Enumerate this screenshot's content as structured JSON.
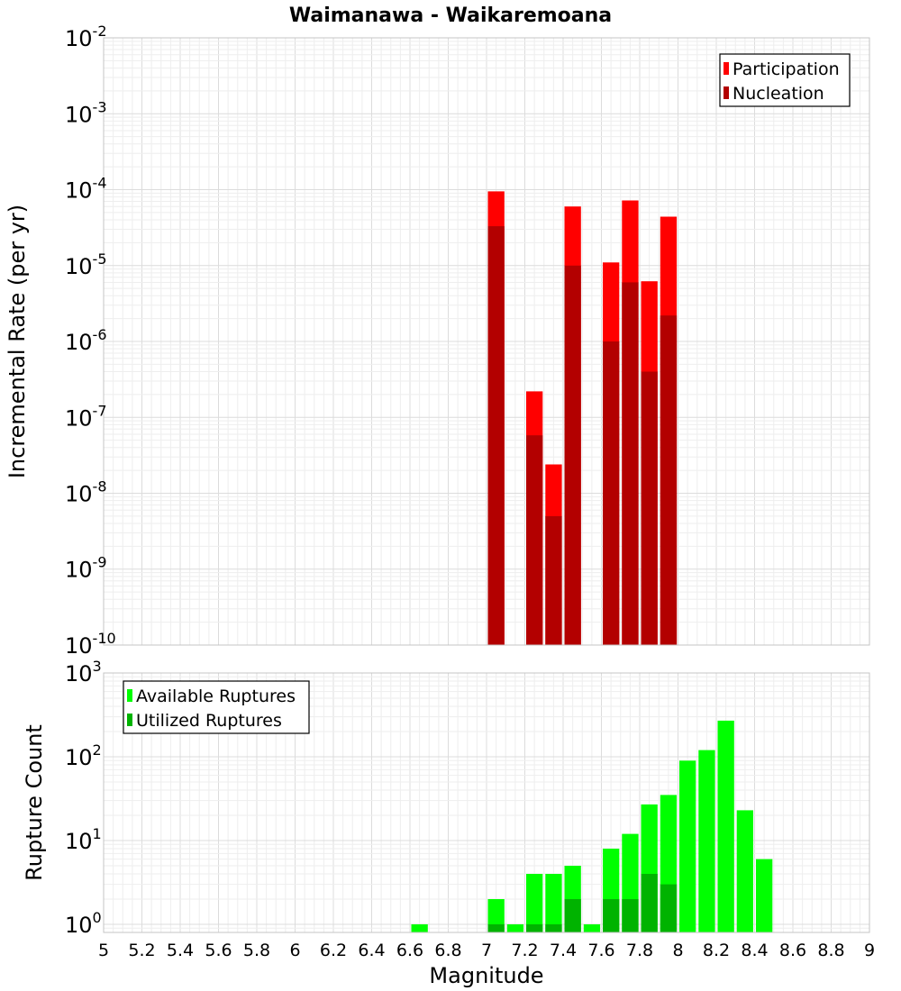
{
  "chart_data": [
    {
      "type": "bar",
      "panel": "top",
      "title": "Waimanawa - Waikaremoana",
      "ylabel": "Incremental Rate (per yr)",
      "yscale": "log",
      "ylim": [
        1e-10,
        0.01
      ],
      "y_ticks": [
        {
          "base": "10",
          "exp": "-2"
        },
        {
          "base": "10",
          "exp": "-3"
        },
        {
          "base": "10",
          "exp": "-4"
        },
        {
          "base": "10",
          "exp": "-5"
        },
        {
          "base": "10",
          "exp": "-6"
        },
        {
          "base": "10",
          "exp": "-7"
        },
        {
          "base": "10",
          "exp": "-8"
        },
        {
          "base": "10",
          "exp": "-9"
        },
        {
          "base": "10",
          "exp": "-10"
        }
      ],
      "xlim": [
        5,
        9
      ],
      "bar_width": 0.1,
      "legend_position": "top-right",
      "series": [
        {
          "name": "Participation",
          "color": "#ff0000",
          "x": [
            7.05,
            7.25,
            7.35,
            7.45,
            7.65,
            7.75,
            7.85,
            7.95
          ],
          "values": [
            9.5e-05,
            2.2e-07,
            2.4e-08,
            6e-05,
            1.1e-05,
            7.2e-05,
            6.2e-06,
            4.4e-05
          ]
        },
        {
          "name": "Nucleation",
          "color": "#b30000",
          "x": [
            7.05,
            7.25,
            7.35,
            7.45,
            7.65,
            7.75,
            7.85,
            7.95
          ],
          "values": [
            3.3e-05,
            5.8e-08,
            5e-09,
            1e-05,
            1e-06,
            6e-06,
            4e-07,
            2.2e-06
          ]
        }
      ]
    },
    {
      "type": "bar",
      "panel": "bottom",
      "ylabel": "Rupture Count",
      "xlabel": "Magnitude",
      "yscale": "log",
      "ylim": [
        0.8,
        1000
      ],
      "y_ticks": [
        {
          "base": "10",
          "exp": "3"
        },
        {
          "base": "10",
          "exp": "2"
        },
        {
          "base": "10",
          "exp": "1"
        },
        {
          "base": "10",
          "exp": "0"
        }
      ],
      "xlim": [
        5,
        9
      ],
      "x_ticks": [
        "5",
        "5.2",
        "5.4",
        "5.6",
        "5.8",
        "6",
        "6.2",
        "6.4",
        "6.6",
        "6.8",
        "7",
        "7.2",
        "7.4",
        "7.6",
        "7.8",
        "8",
        "8.2",
        "8.4",
        "8.6",
        "8.8",
        "9"
      ],
      "bar_width": 0.1,
      "legend_position": "top-left",
      "series": [
        {
          "name": "Available Ruptures",
          "color": "#00ff00",
          "x": [
            6.65,
            7.05,
            7.15,
            7.25,
            7.35,
            7.45,
            7.55,
            7.65,
            7.75,
            7.85,
            7.95,
            8.05,
            8.15,
            8.25,
            8.35,
            8.45
          ],
          "values": [
            1,
            2,
            1,
            4,
            4,
            5,
            1,
            8,
            12,
            27,
            35,
            90,
            120,
            270,
            23,
            6
          ]
        },
        {
          "name": "Utilized Ruptures",
          "color": "#00b300",
          "x": [
            7.05,
            7.25,
            7.35,
            7.45,
            7.65,
            7.75,
            7.85,
            7.95
          ],
          "values": [
            1,
            1,
            1,
            2,
            2,
            2,
            4,
            3
          ]
        }
      ]
    }
  ]
}
